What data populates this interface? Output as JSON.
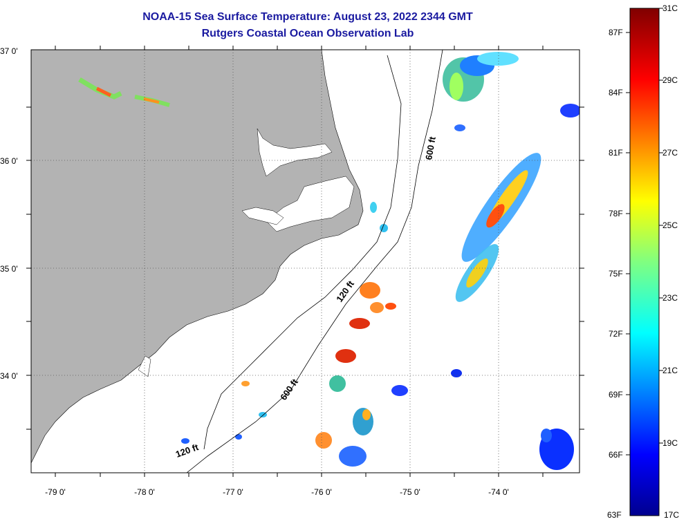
{
  "title_line1": "NOAA-15 Sea Surface Temperature:  August 23, 2022 2344 GMT",
  "title_line2": "Rutgers Coastal Ocean Observation Lab",
  "lat_labels": [
    "37 0'",
    "36 0'",
    "35 0'",
    "34 0'"
  ],
  "lon_labels": [
    "-79 0'",
    "-78 0'",
    "-77 0'",
    "-76 0'",
    "-75 0'",
    "-74 0'"
  ],
  "isobath_labels": [
    "600 ft",
    "120 ft",
    "600 ft",
    "120 ft"
  ],
  "colorbar": {
    "fahrenheit": [
      "87F",
      "84F",
      "81F",
      "78F",
      "75F",
      "72F",
      "69F",
      "66F",
      "63F"
    ],
    "celsius": [
      "31C",
      "29C",
      "27C",
      "25C",
      "23C",
      "21C",
      "19C",
      "17C"
    ]
  },
  "colors": {
    "land": "#b3b3b3",
    "title": "#1a1aa0"
  }
}
